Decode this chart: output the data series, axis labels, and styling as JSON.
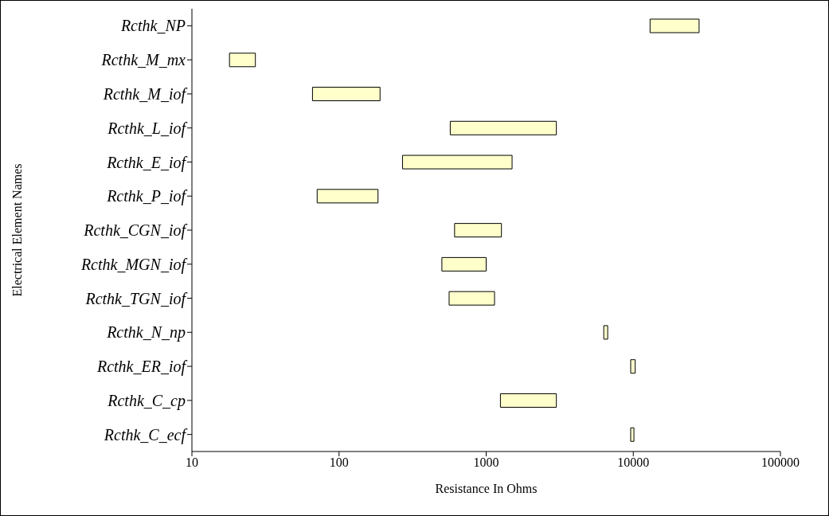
{
  "chart_data": {
    "type": "bar",
    "orientation": "horizontal",
    "log": "x",
    "xlabel": "Resistance In Ohms",
    "ylabel": "Electrical Element Names",
    "categories": [
      "Rcthk_NP",
      "Rcthk_M_mx",
      "Rcthk_M_iof",
      "Rcthk_L_iof",
      "Rcthk_E_iof",
      "Rcthk_P_iof",
      "Rcthk_CGN_iof",
      "Rcthk_MGN_iof",
      "Rcthk_TGN_iof",
      "Rcthk_N_np",
      "Rcthk_ER_iof",
      "Rcthk_C_cp",
      "Rcthk_C_ecf"
    ],
    "base": [
      13000,
      18,
      66,
      570,
      270,
      71,
      610,
      500,
      560,
      6300,
      9600,
      1250,
      9600
    ],
    "values": [
      15000,
      9,
      124,
      2430,
      1230,
      113,
      660,
      500,
      580,
      400,
      700,
      1750,
      500
    ],
    "color": "#ffffcc",
    "xlim": [
      10,
      100000
    ],
    "xticks": [
      10,
      100,
      1000,
      10000,
      100000
    ]
  }
}
